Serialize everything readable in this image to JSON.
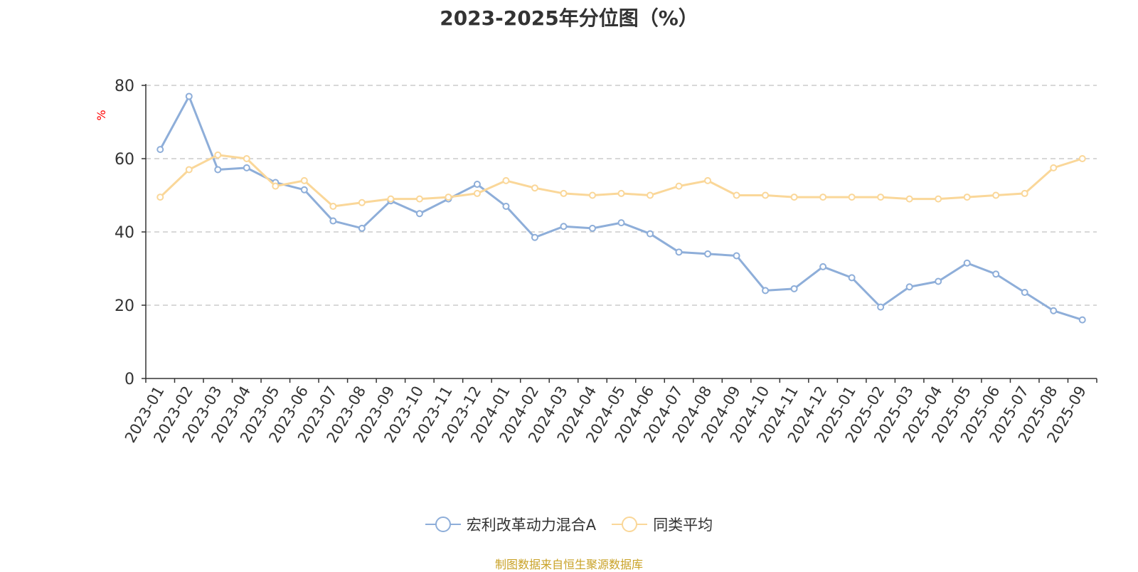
{
  "chart_data": {
    "type": "line",
    "title": "2023-2025年分位图（%）",
    "ylabel": "%",
    "xlabel": "",
    "ylim": [
      0,
      80
    ],
    "yticks": [
      0,
      20,
      40,
      60,
      80
    ],
    "grid": true,
    "legend_position": "bottom",
    "categories": [
      "2023-01",
      "2023-02",
      "2023-03",
      "2023-04",
      "2023-05",
      "2023-06",
      "2023-07",
      "2023-08",
      "2023-09",
      "2023-10",
      "2023-11",
      "2023-12",
      "2024-01",
      "2024-02",
      "2024-03",
      "2024-04",
      "2024-05",
      "2024-06",
      "2024-07",
      "2024-08",
      "2024-09",
      "2024-10",
      "2024-11",
      "2024-12",
      "2025-01",
      "2025-02",
      "2025-03",
      "2025-04",
      "2025-05",
      "2025-06",
      "2025-07",
      "2025-08",
      "2025-09"
    ],
    "series": [
      {
        "name": "宏利改革动力混合A",
        "color": "#8eaed9",
        "values": [
          62.5,
          77,
          57,
          57.5,
          53.5,
          51.5,
          43,
          41,
          48.5,
          45,
          49,
          53,
          47,
          38.5,
          41.5,
          41,
          42.5,
          39.5,
          34.5,
          34,
          33.5,
          24,
          24.5,
          30.5,
          27.5,
          19.5,
          25,
          26.5,
          31.5,
          28.5,
          23.5,
          18.5,
          16
        ]
      },
      {
        "name": "同类平均",
        "color": "#fad799",
        "values": [
          49.5,
          57,
          61,
          60,
          52.5,
          54,
          47,
          48,
          49,
          49,
          49.5,
          50.5,
          54,
          52,
          50.5,
          50,
          50.5,
          50,
          52.5,
          54,
          50,
          50,
          49.5,
          49.5,
          49.5,
          49.5,
          49,
          49,
          49.5,
          50,
          50.5,
          57.5,
          60
        ]
      }
    ],
    "source": "制图数据来自恒生聚源数据库",
    "source_color": "#c9a227",
    "ylabel_color": "#ff0000",
    "axis_color": "#333333",
    "grid_color": "#cccccc"
  }
}
